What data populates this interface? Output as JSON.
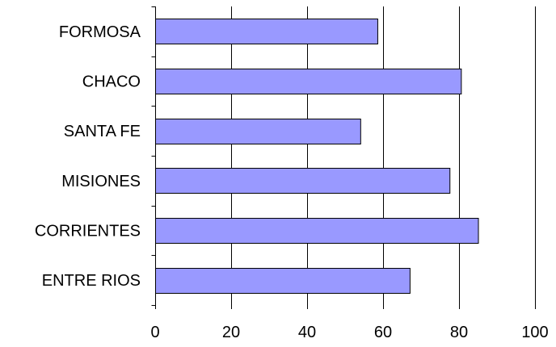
{
  "chart_data": {
    "type": "bar",
    "orientation": "horizontal",
    "categories": [
      "FORMOSA",
      "CHACO",
      "SANTA FE",
      "MISIONES",
      "CORRIENTES",
      "ENTRE RIOS"
    ],
    "values": [
      58.5,
      80.5,
      54,
      77.5,
      85,
      67
    ],
    "xlim": [
      0,
      100
    ],
    "xticks": [
      0,
      20,
      40,
      60,
      80,
      100
    ],
    "grid": "vertical major gridlines",
    "legend": "none",
    "colors": {
      "bar_fill": "#9999FF",
      "bar_stroke": "#000000",
      "grid": "#000000",
      "text": "#000000"
    }
  }
}
